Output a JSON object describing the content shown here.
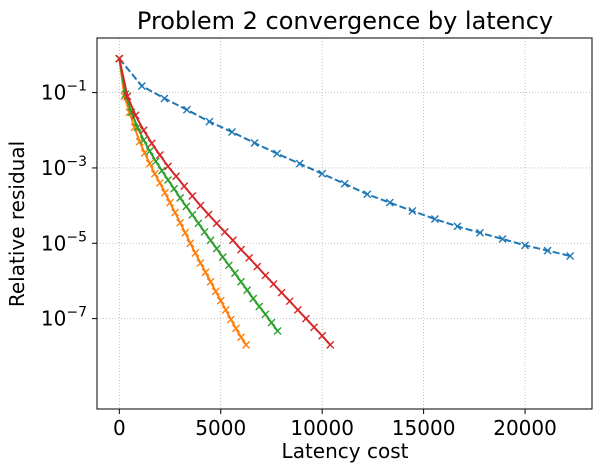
{
  "chart_data": {
    "type": "line",
    "title": "Problem 2 convergence by latency",
    "xlabel": "Latency cost",
    "ylabel": "Relative residual",
    "xlim": [
      -1100,
      23300
    ],
    "ylim_log10": [
      -9.4,
      0.45
    ],
    "yscale": "log",
    "grid": true,
    "xticks": [
      0,
      5000,
      10000,
      15000,
      20000
    ],
    "xtick_labels": [
      "0",
      "5000",
      "10000",
      "15000",
      "20000"
    ],
    "yticks": [
      {
        "base": "10",
        "exp": "−1",
        "value": 0.1
      },
      {
        "base": "10",
        "exp": "−3",
        "value": 0.001
      },
      {
        "base": "10",
        "exp": "−5",
        "value": 1e-05
      },
      {
        "base": "10",
        "exp": "−7",
        "value": 1e-07
      }
    ],
    "series": [
      {
        "color": "#1f77b4",
        "dash": "dashed",
        "marker": "x",
        "x": [
          0,
          1111,
          2222,
          3333,
          4444,
          5556,
          6667,
          7778,
          8889,
          10000,
          11111,
          12222,
          13333,
          14444,
          15556,
          16667,
          17778,
          18889,
          20000,
          21111,
          22222
        ],
        "y": [
          0.8,
          0.15,
          0.07,
          0.035,
          0.017,
          0.009,
          0.0046,
          0.0024,
          0.0013,
          0.0007,
          0.00038,
          0.0002,
          0.00012,
          7.2e-05,
          4.4e-05,
          2.8e-05,
          1.9e-05,
          1.3e-05,
          8.8e-06,
          6.4e-06,
          4.6e-06
        ]
      },
      {
        "color": "#ff7f0e",
        "dash": "solid",
        "marker": "x",
        "x": [
          0,
          250,
          500,
          750,
          1000,
          1250,
          1500,
          1750,
          2000,
          2250,
          2500,
          2750,
          3000,
          3250,
          3500,
          3750,
          4000,
          4250,
          4500,
          4750,
          5000,
          5250,
          5500,
          5750,
          6000,
          6250
        ],
        "y": [
          0.8,
          0.08,
          0.03,
          0.012,
          0.005,
          0.0025,
          0.0013,
          0.0007,
          0.0004,
          0.00022,
          0.00012,
          6.5e-05,
          3.5e-05,
          1.9e-05,
          1e-05,
          5.5e-06,
          3e-06,
          1.7e-06,
          9.5e-07,
          5.3e-07,
          3e-07,
          1.7e-07,
          9.5e-08,
          5.5e-08,
          3.2e-08,
          2e-08
        ]
      },
      {
        "color": "#2ca02c",
        "dash": "solid",
        "marker": "x",
        "x": [
          0,
          300,
          600,
          900,
          1200,
          1500,
          1800,
          2100,
          2400,
          2700,
          3000,
          3300,
          3600,
          3900,
          4200,
          4500,
          4800,
          5100,
          5400,
          5700,
          6000,
          6300,
          6600,
          6900,
          7200,
          7500,
          7800
        ],
        "y": [
          0.8,
          0.09,
          0.03,
          0.012,
          0.0055,
          0.0028,
          0.0015,
          0.00085,
          0.00048,
          0.00028,
          0.00016,
          9.5e-05,
          5.7e-05,
          3.4e-05,
          2e-05,
          1.2e-05,
          7.2e-06,
          4.3e-06,
          2.6e-06,
          1.6e-06,
          9.5e-07,
          5.7e-07,
          3.4e-07,
          2.1e-07,
          1.3e-07,
          7.8e-08,
          4.7e-08
        ]
      },
      {
        "color": "#d62728",
        "dash": "solid",
        "marker": "x",
        "x": [
          0,
          400,
          800,
          1200,
          1600,
          2000,
          2400,
          2800,
          3200,
          3600,
          4000,
          4400,
          4800,
          5200,
          5600,
          6000,
          6400,
          6800,
          7200,
          7600,
          8000,
          8400,
          8800,
          9200,
          9600,
          10000,
          10400
        ],
        "y": [
          0.8,
          0.08,
          0.025,
          0.01,
          0.0045,
          0.0022,
          0.0011,
          0.0006,
          0.00033,
          0.00018,
          0.0001,
          5.8e-05,
          3.4e-05,
          2e-05,
          1.2e-05,
          6.8e-06,
          4.1e-06,
          2.4e-06,
          1.4e-06,
          8.3e-07,
          4.9e-07,
          2.9e-07,
          1.7e-07,
          1e-07,
          5.9e-08,
          3.5e-08,
          2e-08
        ]
      }
    ]
  }
}
